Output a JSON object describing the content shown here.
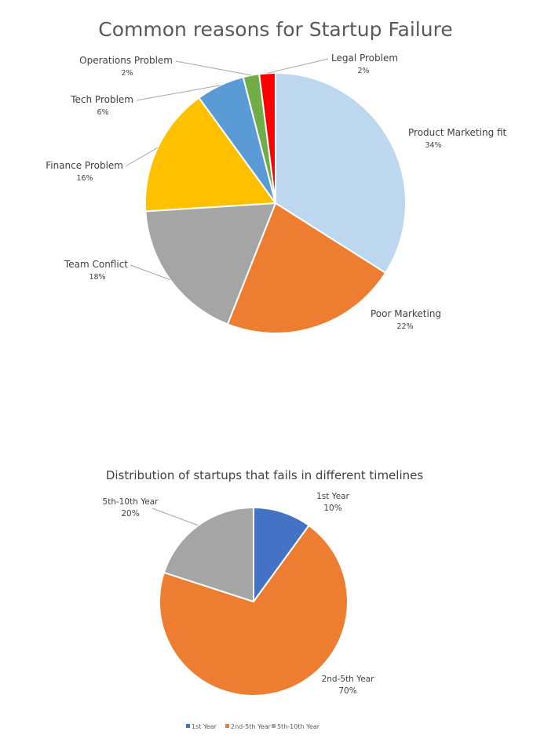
{
  "chart_data": [
    {
      "type": "pie",
      "title": "Common reasons for Startup Failure",
      "slices": [
        {
          "label": "Product Marketing fit",
          "value": 34,
          "value_label": "34%",
          "color": "#bdd7ee"
        },
        {
          "label": "Poor Marketing",
          "value": 22,
          "value_label": "22%",
          "color": "#ed7d31"
        },
        {
          "label": "Team Conflict",
          "value": 18,
          "value_label": "18%",
          "color": "#a5a5a5"
        },
        {
          "label": "Finance Problem",
          "value": 16,
          "value_label": "16%",
          "color": "#ffc000"
        },
        {
          "label": "Tech Problem",
          "value": 6,
          "value_label": "6%",
          "color": "#5b9bd5"
        },
        {
          "label": "Operations Problem",
          "value": 2,
          "value_label": "2%",
          "color": "#70ad47"
        },
        {
          "label": "Legal Problem",
          "value": 2,
          "value_label": "2%",
          "color": "#ff0000"
        }
      ]
    },
    {
      "type": "pie",
      "title": "Distribution of startups that fails in different timelines",
      "slices": [
        {
          "label": "1st Year",
          "value": 10,
          "value_label": "10%",
          "color": "#4472c4"
        },
        {
          "label": "2nd-5th Year",
          "value": 70,
          "value_label": "70%",
          "color": "#ed7d31"
        },
        {
          "label": "5th-10th Year",
          "value": 20,
          "value_label": "20%",
          "color": "#a5a5a5"
        }
      ],
      "legend": [
        "1st Year",
        "2nd-5th Year",
        "5th-10th Year"
      ],
      "legend_position": "bottom"
    }
  ]
}
